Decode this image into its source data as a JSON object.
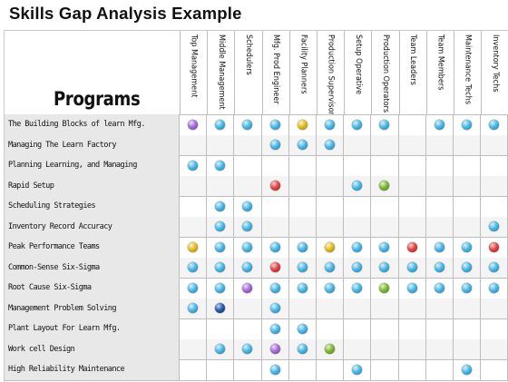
{
  "title": "Skills Gap Analysis Example",
  "programs_header": "Programs",
  "columns": [
    "Top Management",
    "Middle Management",
    "Schedulers",
    "Mfg. Prod Engineer",
    "Facility Planners",
    "Production Supervisor",
    "Setup Operative",
    "Production Operators",
    "Team Leaders",
    "Team Members",
    "Maintenance Techs",
    "Inventory Techs"
  ],
  "colors": {
    "b": "blue",
    "p": "purple",
    "y": "yellow",
    "r": "red",
    "g": "green",
    "n": "navy"
  },
  "rows": [
    {
      "label": "The Building Blocks of learn Mfg.",
      "cells": [
        "p",
        "b",
        "b",
        "b",
        "y",
        "b",
        "b",
        "b",
        "",
        "b",
        "b",
        "b"
      ]
    },
    {
      "label": "Managing The Learn Factory",
      "cells": [
        "",
        "",
        "",
        "b",
        "b",
        "b",
        "",
        "",
        "",
        "",
        "",
        ""
      ]
    },
    {
      "label": "Planning Learning, and Managing",
      "cells": [
        "b",
        "b",
        "",
        "",
        "",
        "",
        "",
        "",
        "",
        "",
        "",
        ""
      ]
    },
    {
      "label": "Rapid Setup",
      "cells": [
        "",
        "",
        "",
        "r",
        "",
        "",
        "b",
        "g",
        "",
        "",
        "",
        ""
      ]
    },
    {
      "label": "Scheduling Strategies",
      "cells": [
        "",
        "b",
        "b",
        "",
        "",
        "",
        "",
        "",
        "",
        "",
        "",
        ""
      ]
    },
    {
      "label": "Inventory Record Accuracy",
      "cells": [
        "",
        "b",
        "b",
        "",
        "",
        "",
        "",
        "",
        "",
        "",
        "",
        "b"
      ]
    },
    {
      "label": "Peak Performance Teams",
      "cells": [
        "y",
        "b",
        "b",
        "b",
        "b",
        "y",
        "b",
        "b",
        "r",
        "b",
        "b",
        "r"
      ]
    },
    {
      "label": "Common-Sense Six-Sigma",
      "cells": [
        "b",
        "b",
        "b",
        "r",
        "b",
        "b",
        "b",
        "b",
        "b",
        "b",
        "b",
        "b"
      ]
    },
    {
      "label": "Root Cause Six-Sigma",
      "cells": [
        "b",
        "b",
        "p",
        "b",
        "b",
        "b",
        "b",
        "g",
        "b",
        "b",
        "b",
        "b"
      ]
    },
    {
      "label": "Management Problem Solving",
      "cells": [
        "b",
        "n",
        "",
        "b",
        "",
        "",
        "",
        "",
        "",
        "",
        "",
        ""
      ]
    },
    {
      "label": "Plant Layout For Learn Mfg.",
      "cells": [
        "",
        "",
        "",
        "b",
        "b",
        "",
        "",
        "",
        "",
        "",
        "",
        ""
      ]
    },
    {
      "label": "Work cell Design",
      "cells": [
        "",
        "b",
        "b",
        "p",
        "b",
        "g",
        "",
        "",
        "",
        "",
        "",
        ""
      ]
    },
    {
      "label": "High Reliability Maintenance",
      "cells": [
        "",
        "",
        "",
        "b",
        "",
        "",
        "b",
        "",
        "",
        "",
        "b",
        ""
      ]
    }
  ]
}
